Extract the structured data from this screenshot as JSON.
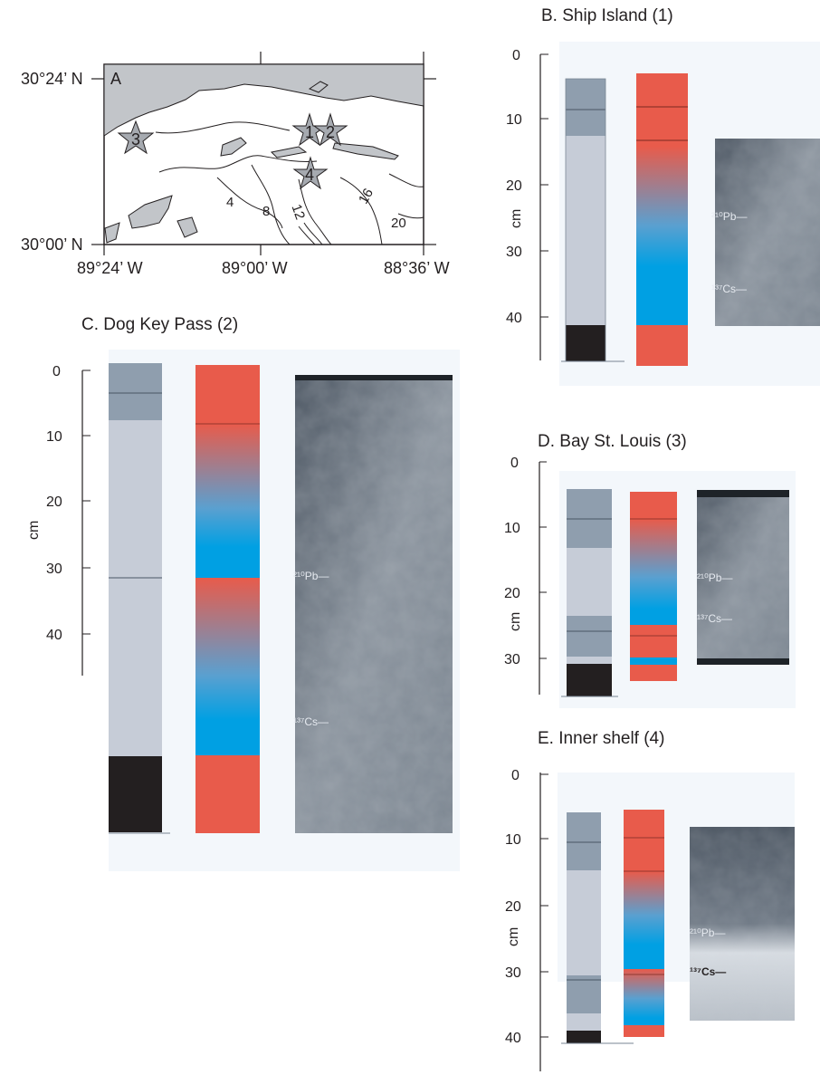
{
  "colors": {
    "land": "#c2c5c9",
    "water": "#ffffff",
    "panel_bg": "#f3f7fb",
    "litho_dark_gray": "#8f9eae",
    "litho_light": "#c6ccd7",
    "litho_black": "#231f20",
    "sed_red": "#e85b4b",
    "sed_blue": "#00a0e3",
    "xray_dark": "#3c4550",
    "xray_light": "#9aa3ad"
  },
  "map": {
    "panel_label": "A",
    "lat_labels": [
      "30°24’ N",
      "30°00’ N"
    ],
    "lon_labels": [
      "89°24’ W",
      "89°00’ W",
      "88°36’ W"
    ],
    "contour_labels": [
      "4",
      "8",
      "12",
      "16",
      "20"
    ],
    "stations": [
      "1",
      "2",
      "3",
      "4"
    ]
  },
  "cores": {
    "B": {
      "title": "B. Ship Island  (1)",
      "axis_label": "cm",
      "ticks": [
        "0",
        "10",
        "20",
        "30",
        "40"
      ],
      "xray_labels": [
        "²¹⁰Pb",
        "¹³⁷Cs"
      ]
    },
    "C": {
      "title": "C. Dog Key Pass  (2)",
      "axis_label": "cm",
      "ticks": [
        "0",
        "10",
        "20",
        "30",
        "40"
      ],
      "xray_labels": [
        "²¹⁰Pb",
        "¹³⁷Cs"
      ]
    },
    "D": {
      "title": "D. Bay St. Louis (3)",
      "axis_label": "cm",
      "ticks": [
        "0",
        "10",
        "20",
        "30"
      ],
      "xray_labels": [
        "²¹⁰Pb",
        "¹³⁷Cs"
      ]
    },
    "E": {
      "title": "E. Inner shelf (4)",
      "axis_label": "cm",
      "ticks": [
        "0",
        "10",
        "20",
        "30",
        "40"
      ],
      "xray_labels": [
        "²¹⁰Pb",
        "¹³⁷Cs"
      ]
    }
  }
}
